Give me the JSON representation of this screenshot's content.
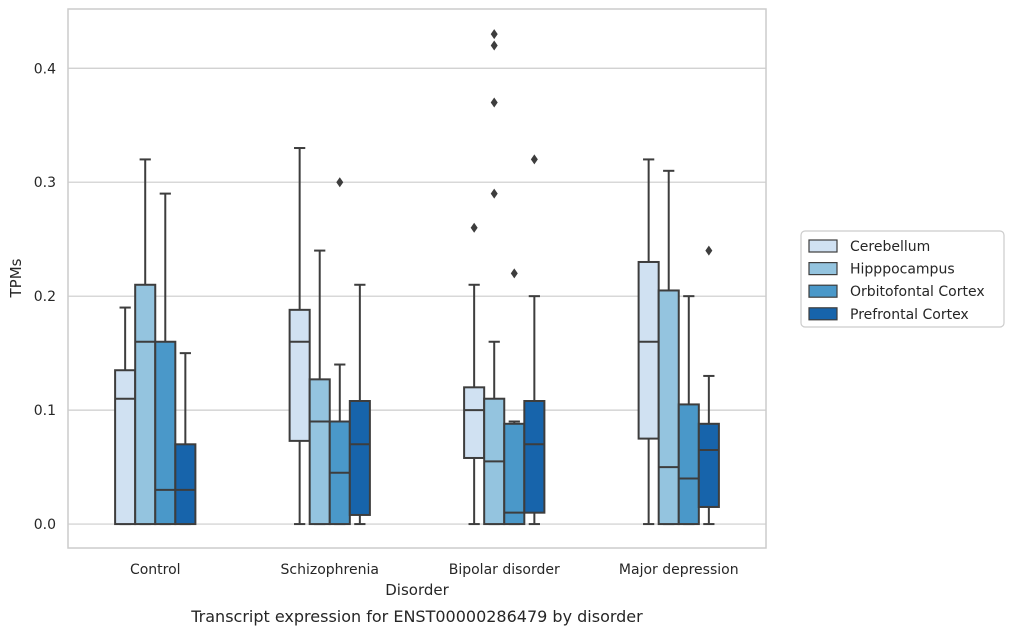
{
  "chart_data": {
    "type": "box",
    "caption": "Transcript expression for ENST00000286479 by disorder",
    "xlabel": "Disorder",
    "ylabel": "TPMs",
    "ylim": [
      -0.021,
      0.452
    ],
    "yticks": [
      "0.0",
      "0.1",
      "0.2",
      "0.3",
      "0.4"
    ],
    "grid": "horizontal",
    "legend_position": "right",
    "categories": [
      "Control",
      "Schizophrenia",
      "Bipolar disorder",
      "Major depression"
    ],
    "series": [
      {
        "name": "Cerebellum",
        "color": "#d0e1f2",
        "boxes": [
          {
            "lower_whisker": 0.0,
            "q1": 0.0,
            "median": 0.11,
            "q3": 0.135,
            "upper_whisker": 0.19,
            "outliers": []
          },
          {
            "lower_whisker": 0.0,
            "q1": 0.073,
            "median": 0.16,
            "q3": 0.188,
            "upper_whisker": 0.33,
            "outliers": []
          },
          {
            "lower_whisker": 0.0,
            "q1": 0.058,
            "median": 0.1,
            "q3": 0.12,
            "upper_whisker": 0.21,
            "outliers": [
              0.26
            ]
          },
          {
            "lower_whisker": 0.0,
            "q1": 0.075,
            "median": 0.16,
            "q3": 0.23,
            "upper_whisker": 0.32,
            "outliers": []
          }
        ]
      },
      {
        "name": "Hipppocampus",
        "color": "#94c4df",
        "boxes": [
          {
            "lower_whisker": 0.0,
            "q1": 0.0,
            "median": 0.16,
            "q3": 0.21,
            "upper_whisker": 0.32,
            "outliers": []
          },
          {
            "lower_whisker": 0.0,
            "q1": 0.0,
            "median": 0.09,
            "q3": 0.127,
            "upper_whisker": 0.24,
            "outliers": []
          },
          {
            "lower_whisker": 0.0,
            "q1": 0.0,
            "median": 0.055,
            "q3": 0.11,
            "upper_whisker": 0.16,
            "outliers": [
              0.29,
              0.37,
              0.42,
              0.43
            ]
          },
          {
            "lower_whisker": 0.0,
            "q1": 0.0,
            "median": 0.05,
            "q3": 0.205,
            "upper_whisker": 0.31,
            "outliers": []
          }
        ]
      },
      {
        "name": "Orbitofontal Cortex",
        "color": "#4a98c9",
        "boxes": [
          {
            "lower_whisker": 0.0,
            "q1": 0.0,
            "median": 0.03,
            "q3": 0.16,
            "upper_whisker": 0.29,
            "outliers": []
          },
          {
            "lower_whisker": 0.0,
            "q1": 0.0,
            "median": 0.045,
            "q3": 0.09,
            "upper_whisker": 0.14,
            "outliers": [
              0.3
            ]
          },
          {
            "lower_whisker": 0.0,
            "q1": 0.0,
            "median": 0.01,
            "q3": 0.088,
            "upper_whisker": 0.09,
            "outliers": [
              0.22
            ]
          },
          {
            "lower_whisker": 0.0,
            "q1": 0.0,
            "median": 0.04,
            "q3": 0.105,
            "upper_whisker": 0.2,
            "outliers": []
          }
        ]
      },
      {
        "name": "Prefrontal Cortex",
        "color": "#1764ab",
        "boxes": [
          {
            "lower_whisker": 0.0,
            "q1": 0.0,
            "median": 0.03,
            "q3": 0.07,
            "upper_whisker": 0.15,
            "outliers": []
          },
          {
            "lower_whisker": 0.0,
            "q1": 0.008,
            "median": 0.07,
            "q3": 0.108,
            "upper_whisker": 0.21,
            "outliers": []
          },
          {
            "lower_whisker": 0.0,
            "q1": 0.01,
            "median": 0.07,
            "q3": 0.108,
            "upper_whisker": 0.2,
            "outliers": [
              0.32
            ]
          },
          {
            "lower_whisker": 0.0,
            "q1": 0.015,
            "median": 0.065,
            "q3": 0.088,
            "upper_whisker": 0.13,
            "outliers": [
              0.24
            ]
          }
        ]
      }
    ]
  }
}
